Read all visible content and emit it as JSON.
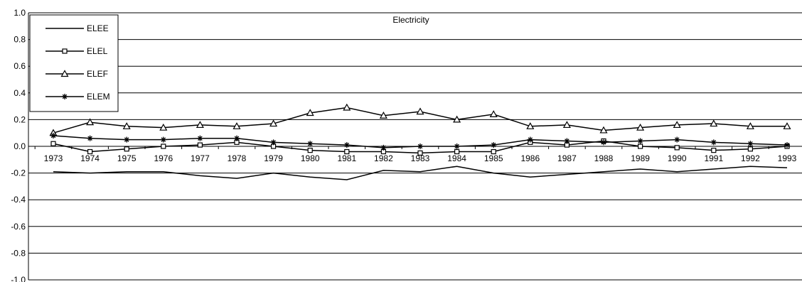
{
  "chart_data": {
    "type": "line",
    "title": "Electricity",
    "xlabel": "",
    "ylabel": "",
    "categories": [
      "1973",
      "1974",
      "1975",
      "1976",
      "1977",
      "1978",
      "1979",
      "1980",
      "1981",
      "1982",
      "1983",
      "1984",
      "1985",
      "1986",
      "1987",
      "1988",
      "1989",
      "1990",
      "1991",
      "1992",
      "1993"
    ],
    "ylim": [
      -1.0,
      1.0
    ],
    "yticks": [
      "1.0",
      "0.8",
      "0.6",
      "0.4",
      "0.2",
      "0.0",
      "-0.2",
      "-0.4",
      "-0.6",
      "-0.8",
      "-1.0"
    ],
    "grid": true,
    "legend_position": "top-left",
    "series": [
      {
        "name": "ELEE",
        "marker": "none",
        "color": "#000000",
        "values": [
          -0.19,
          -0.2,
          -0.19,
          -0.19,
          -0.22,
          -0.24,
          -0.2,
          -0.23,
          -0.25,
          -0.18,
          -0.19,
          -0.15,
          -0.2,
          -0.23,
          -0.21,
          -0.19,
          -0.17,
          -0.19,
          -0.17,
          -0.15,
          -0.16
        ]
      },
      {
        "name": "ELEL",
        "marker": "square",
        "color": "#000000",
        "values": [
          0.02,
          -0.04,
          -0.02,
          0.0,
          0.01,
          0.03,
          0.0,
          -0.03,
          -0.04,
          -0.04,
          -0.05,
          -0.04,
          -0.04,
          0.03,
          0.01,
          0.04,
          0.0,
          -0.01,
          -0.03,
          -0.02,
          0.0
        ]
      },
      {
        "name": "ELEF",
        "marker": "triangle",
        "color": "#000000",
        "values": [
          0.1,
          0.18,
          0.15,
          0.14,
          0.16,
          0.15,
          0.17,
          0.25,
          0.29,
          0.23,
          0.26,
          0.2,
          0.24,
          0.15,
          0.16,
          0.12,
          0.14,
          0.16,
          0.17,
          0.15,
          0.15
        ]
      },
      {
        "name": "ELEM",
        "marker": "star",
        "color": "#000000",
        "values": [
          0.08,
          0.06,
          0.05,
          0.05,
          0.06,
          0.06,
          0.03,
          0.02,
          0.01,
          -0.01,
          0.0,
          0.0,
          0.01,
          0.05,
          0.04,
          0.03,
          0.04,
          0.05,
          0.03,
          0.02,
          0.01
        ]
      }
    ]
  }
}
